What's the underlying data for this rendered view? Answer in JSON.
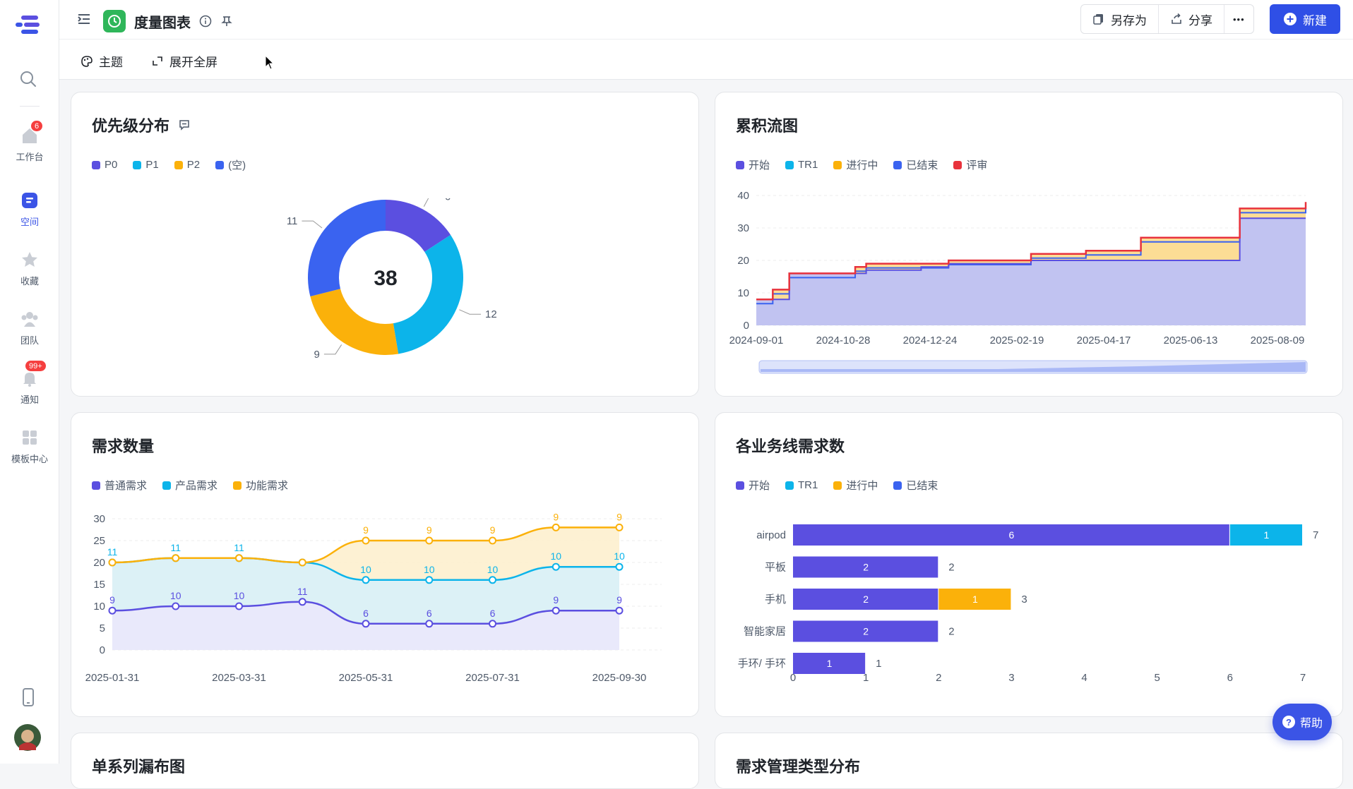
{
  "sidebar": {
    "items": [
      {
        "label": "工作台",
        "badge": "6"
      },
      {
        "label": "空间"
      },
      {
        "label": "收藏"
      },
      {
        "label": "团队"
      },
      {
        "label": "通知",
        "badge": "99+"
      },
      {
        "label": "模板中心"
      }
    ]
  },
  "header": {
    "title": "度量图表",
    "save_as": "另存为",
    "share": "分享",
    "more": "•••",
    "new": "新建"
  },
  "toolbar": {
    "theme": "主题",
    "fullscreen": "展开全屏"
  },
  "colors": {
    "purple": "#5b4fe0",
    "cyan": "#0cb4ea",
    "orange": "#fbb10a",
    "blue": "#3a63f0",
    "red": "#e8323c",
    "accent": "#2f4fe6"
  },
  "charts": {
    "priority": {
      "title": "优先级分布",
      "center": "38",
      "chart_data": {
        "type": "pie",
        "labels": [
          "P0",
          "P1",
          "P2",
          "(空)"
        ],
        "values": [
          6,
          12,
          9,
          11
        ],
        "colors": [
          "#5b4fe0",
          "#0cb4ea",
          "#fbb10a",
          "#3a63f0"
        ],
        "total": 38
      }
    },
    "cfd": {
      "title": "累积流图",
      "chart_data": {
        "type": "area",
        "legend": [
          "开始",
          "TR1",
          "进行中",
          "已结束",
          "评审"
        ],
        "x_ticks": [
          "2024-09-01",
          "2024-10-28",
          "2024-12-24",
          "2025-02-19",
          "2025-04-17",
          "2025-06-13",
          "2025-08-09"
        ],
        "y_ticks": [
          "0",
          "10",
          "20",
          "30",
          "40"
        ],
        "ylim": [
          0,
          40
        ],
        "series": [
          {
            "name": "开始",
            "steps": [
              [
                0,
                8
              ],
              [
                0.06,
                16
              ],
              [
                0.15,
                16
              ],
              [
                0.2,
                17
              ],
              [
                0.3,
                18
              ],
              [
                0.35,
                19
              ],
              [
                0.5,
                20
              ],
              [
                0.6,
                20
              ],
              [
                0.7,
                20
              ],
              [
                0.88,
                33
              ],
              [
                1.0,
                33
              ]
            ]
          },
          {
            "name": "评审",
            "steps": [
              [
                0,
                8
              ],
              [
                0.03,
                11
              ],
              [
                0.06,
                16
              ],
              [
                0.15,
                16
              ],
              [
                0.18,
                18
              ],
              [
                0.2,
                19
              ],
              [
                0.3,
                19
              ],
              [
                0.35,
                20
              ],
              [
                0.5,
                22
              ],
              [
                0.6,
                23
              ],
              [
                0.7,
                27
              ],
              [
                0.88,
                36
              ],
              [
                1.0,
                38
              ]
            ]
          }
        ]
      }
    },
    "demand": {
      "title": "需求数量",
      "chart_data": {
        "type": "line",
        "x_ticks": [
          "2025-01-31",
          "2025-03-31",
          "2025-05-31",
          "2025-07-31",
          "2025-09-30"
        ],
        "y_ticks": [
          "0",
          "5",
          "10",
          "15",
          "20",
          "25",
          "30"
        ],
        "ylim": [
          0,
          30
        ],
        "series": [
          {
            "name": "普通需求",
            "color": "#5b4fe0",
            "values": [
              9,
              10,
              10,
              11,
              6,
              6,
              6,
              9,
              9
            ],
            "labels": [
              "9",
              "10",
              "10",
              "11",
              "6",
              "6",
              "6",
              "9",
              "9"
            ]
          },
          {
            "name": "产品需求",
            "color": "#0cb4ea",
            "values": [
              20,
              21,
              21,
              20,
              16,
              16,
              16,
              19,
              19
            ],
            "labels": [
              "11",
              "11",
              "11",
              "",
              "10",
              "10",
              "10",
              "10",
              "10"
            ]
          },
          {
            "name": "功能需求",
            "color": "#fbb10a",
            "values": [
              20,
              21,
              21,
              20,
              25,
              25,
              25,
              28,
              28
            ],
            "labels": [
              "",
              "",
              "",
              "",
              "9",
              "9",
              "9",
              "9",
              "9"
            ]
          }
        ]
      }
    },
    "business": {
      "title": "各业务线需求数",
      "chart_data": {
        "type": "bar",
        "legend": [
          "开始",
          "TR1",
          "进行中",
          "已结束"
        ],
        "categories": [
          "airpod",
          "平板",
          "手机",
          "智能家居",
          "手环/ 手环"
        ],
        "series": [
          {
            "name": "开始",
            "color": "#5b4fe0",
            "values": [
              6,
              2,
              2,
              2,
              1
            ]
          },
          {
            "name": "TR1",
            "color": "#0cb4ea",
            "values": [
              1,
              0,
              0,
              0,
              0
            ]
          },
          {
            "name": "进行中",
            "color": "#fbb10a",
            "values": [
              0,
              0,
              1,
              0,
              0
            ]
          }
        ],
        "totals": [
          "7",
          "2",
          "3",
          "2",
          "1"
        ],
        "x_ticks": [
          "0",
          "1",
          "2",
          "3",
          "4",
          "5",
          "6",
          "7"
        ],
        "xlim": [
          0,
          7
        ]
      }
    },
    "bottom_left_title": "单系列漏布图",
    "bottom_right_title": "需求管理类型分布"
  },
  "help": "帮助"
}
